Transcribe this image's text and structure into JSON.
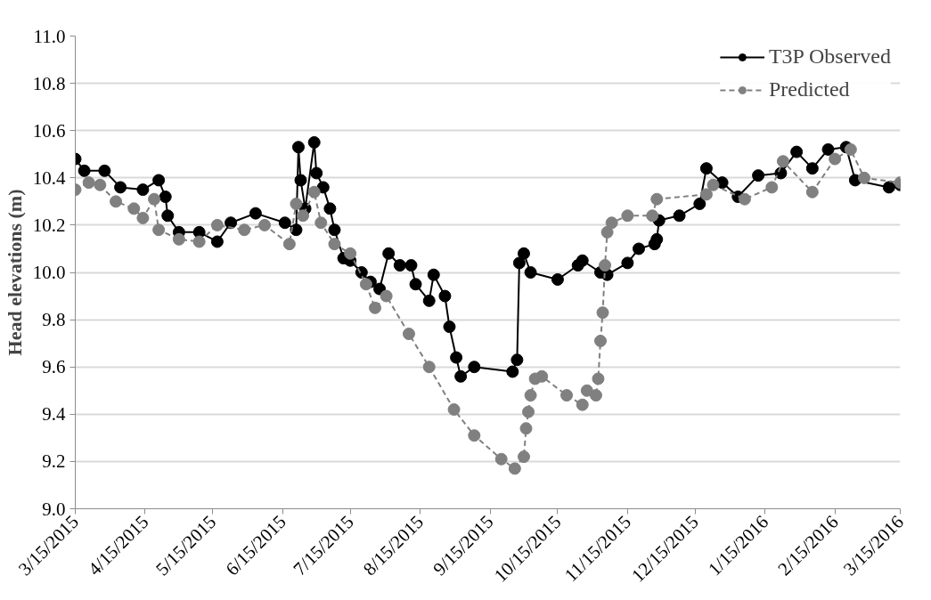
{
  "chart_data": {
    "type": "line",
    "ylabel": "Head elevations (m)",
    "ylim": [
      9.0,
      11.0
    ],
    "yticks": [
      {
        "value": 9.0,
        "label": "9.0"
      },
      {
        "value": 9.2,
        "label": "9.2"
      },
      {
        "value": 9.4,
        "label": "9.4"
      },
      {
        "value": 9.6,
        "label": "9.6"
      },
      {
        "value": 9.8,
        "label": "9.8"
      },
      {
        "value": 10.0,
        "label": "10.0"
      },
      {
        "value": 10.2,
        "label": "10.2"
      },
      {
        "value": 10.4,
        "label": "10.4"
      },
      {
        "value": 10.6,
        "label": "10.6"
      },
      {
        "value": 10.8,
        "label": "10.8"
      },
      {
        "value": 11.0,
        "label": "11.0"
      }
    ],
    "xlim": [
      "2015-03-15",
      "2016-03-15"
    ],
    "xticks": [
      {
        "value": "2015-03-15",
        "label": "3/15/2015"
      },
      {
        "value": "2015-04-15",
        "label": "4/15/2015"
      },
      {
        "value": "2015-05-15",
        "label": "5/15/2015"
      },
      {
        "value": "2015-06-15",
        "label": "6/15/2015"
      },
      {
        "value": "2015-07-15",
        "label": "7/15/2015"
      },
      {
        "value": "2015-08-15",
        "label": "8/15/2015"
      },
      {
        "value": "2015-09-15",
        "label": "9/15/2015"
      },
      {
        "value": "2015-10-15",
        "label": "10/15/2015"
      },
      {
        "value": "2015-11-15",
        "label": "11/15/2015"
      },
      {
        "value": "2015-12-15",
        "label": "12/15/2015"
      },
      {
        "value": "2016-01-15",
        "label": "1/15/2016"
      },
      {
        "value": "2016-02-15",
        "label": "2/15/2016"
      },
      {
        "value": "2016-03-15",
        "label": "3/15/2016"
      }
    ],
    "grid": "y",
    "legend": "top right",
    "marker": "circle",
    "series": [
      {
        "name": "T3P Observed",
        "color": "#000000",
        "line_style": "solid",
        "x": [
          "2015-03-15",
          "2015-03-19",
          "2015-03-28",
          "2015-04-04",
          "2015-04-14",
          "2015-04-21",
          "2015-04-24",
          "2015-04-25",
          "2015-04-30",
          "2015-05-09",
          "2015-05-17",
          "2015-05-23",
          "2015-06-03",
          "2015-06-16",
          "2015-06-21",
          "2015-06-22",
          "2015-06-23",
          "2015-06-25",
          "2015-06-29",
          "2015-06-30",
          "2015-07-03",
          "2015-07-06",
          "2015-07-08",
          "2015-07-12",
          "2015-07-15",
          "2015-07-20",
          "2015-07-24",
          "2015-07-28",
          "2015-08-01",
          "2015-08-06",
          "2015-08-11",
          "2015-08-13",
          "2015-08-19",
          "2015-08-21",
          "2015-08-26",
          "2015-08-28",
          "2015-08-31",
          "2015-09-02",
          "2015-09-08",
          "2015-09-25",
          "2015-09-27",
          "2015-09-28",
          "2015-09-30",
          "2015-10-03",
          "2015-10-15",
          "2015-10-24",
          "2015-10-26",
          "2015-11-03",
          "2015-11-06",
          "2015-11-15",
          "2015-11-20",
          "2015-11-27",
          "2015-11-28",
          "2015-11-29",
          "2015-12-08",
          "2015-12-17",
          "2015-12-20",
          "2015-12-27",
          "2016-01-03",
          "2016-01-12",
          "2016-01-22",
          "2016-01-29",
          "2016-02-05",
          "2016-02-12",
          "2016-02-20",
          "2016-02-24",
          "2016-03-10",
          "2016-03-15"
        ],
        "values": [
          10.48,
          10.43,
          10.43,
          10.36,
          10.35,
          10.39,
          10.32,
          10.24,
          10.17,
          10.17,
          10.13,
          10.21,
          10.25,
          10.21,
          10.18,
          10.53,
          10.39,
          10.27,
          10.55,
          10.42,
          10.36,
          10.27,
          10.18,
          10.06,
          10.05,
          10.0,
          9.96,
          9.93,
          10.08,
          10.03,
          10.03,
          9.95,
          9.88,
          9.99,
          9.9,
          9.77,
          9.64,
          9.56,
          9.6,
          9.58,
          9.63,
          10.04,
          10.08,
          10.0,
          9.97,
          10.03,
          10.05,
          10.0,
          9.99,
          10.04,
          10.1,
          10.12,
          10.14,
          10.22,
          10.24,
          10.29,
          10.44,
          10.38,
          10.32,
          10.41,
          10.42,
          10.51,
          10.44,
          10.52,
          10.53,
          10.39,
          10.36,
          10.37
        ]
      },
      {
        "name": "Predicted",
        "color": "#808080",
        "line_style": "dashed",
        "x": [
          "2015-03-15",
          "2015-03-21",
          "2015-03-26",
          "2015-04-02",
          "2015-04-10",
          "2015-04-14",
          "2015-04-19",
          "2015-04-21",
          "2015-04-30",
          "2015-05-09",
          "2015-05-17",
          "2015-05-29",
          "2015-06-07",
          "2015-06-18",
          "2015-06-21",
          "2015-06-24",
          "2015-06-29",
          "2015-07-02",
          "2015-07-08",
          "2015-07-15",
          "2015-07-22",
          "2015-07-26",
          "2015-07-31",
          "2015-08-10",
          "2015-08-19",
          "2015-08-30",
          "2015-09-08",
          "2015-09-20",
          "2015-09-26",
          "2015-09-30",
          "2015-10-01",
          "2015-10-02",
          "2015-10-03",
          "2015-10-05",
          "2015-10-08",
          "2015-10-19",
          "2015-10-26",
          "2015-10-28",
          "2015-11-01",
          "2015-11-02",
          "2015-11-03",
          "2015-11-04",
          "2015-11-05",
          "2015-11-06",
          "2015-11-08",
          "2015-11-15",
          "2015-11-26",
          "2015-11-28",
          "2015-12-20",
          "2015-12-23",
          "2016-01-06",
          "2016-01-18",
          "2016-01-23",
          "2016-02-05",
          "2016-02-15",
          "2016-02-22",
          "2016-02-28",
          "2016-03-15"
        ],
        "values": [
          10.35,
          10.38,
          10.37,
          10.3,
          10.27,
          10.23,
          10.31,
          10.18,
          10.14,
          10.13,
          10.2,
          10.18,
          10.2,
          10.12,
          10.29,
          10.24,
          10.34,
          10.21,
          10.12,
          10.08,
          9.95,
          9.85,
          9.9,
          9.74,
          9.6,
          9.42,
          9.31,
          9.21,
          9.17,
          9.22,
          9.34,
          9.41,
          9.48,
          9.55,
          9.56,
          9.48,
          9.44,
          9.5,
          9.48,
          9.55,
          9.71,
          9.83,
          10.03,
          10.17,
          10.21,
          10.24,
          10.24,
          10.31,
          10.33,
          10.37,
          10.31,
          10.36,
          10.47,
          10.34,
          10.48,
          10.52,
          10.4,
          10.38
        ]
      }
    ]
  }
}
